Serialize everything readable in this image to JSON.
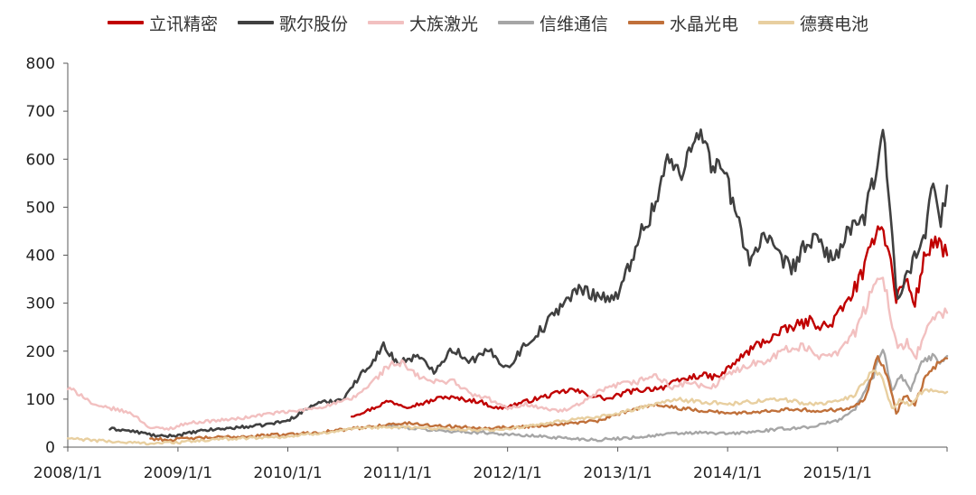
{
  "chart_data": {
    "type": "line",
    "title": "",
    "xlabel": "",
    "ylabel": "",
    "ylim": [
      0,
      800
    ],
    "y_ticks": [
      0,
      100,
      200,
      300,
      400,
      500,
      600,
      700,
      800
    ],
    "x_ticks": [
      "2008/1/1",
      "2009/1/1",
      "2010/1/1",
      "2011/1/1",
      "2012/1/1",
      "2013/1/1",
      "2014/1/1",
      "2015/1/1"
    ],
    "x_range": [
      "2008-01-01",
      "2015-12-31"
    ],
    "grid": false,
    "legend_position": "top",
    "series": [
      {
        "name": "立讯精密",
        "color": "#c00000",
        "points": [
          [
            "2010-08-01",
            65
          ],
          [
            "2010-10-01",
            78
          ],
          [
            "2010-12-01",
            96
          ],
          [
            "2011-02-01",
            85
          ],
          [
            "2011-04-01",
            92
          ],
          [
            "2011-06-01",
            105
          ],
          [
            "2011-08-01",
            100
          ],
          [
            "2011-10-01",
            95
          ],
          [
            "2011-12-01",
            80
          ],
          [
            "2012-02-01",
            90
          ],
          [
            "2012-04-01",
            100
          ],
          [
            "2012-06-01",
            110
          ],
          [
            "2012-08-01",
            120
          ],
          [
            "2012-10-01",
            108
          ],
          [
            "2012-12-01",
            100
          ],
          [
            "2013-02-01",
            115
          ],
          [
            "2013-04-01",
            120
          ],
          [
            "2013-06-01",
            125
          ],
          [
            "2013-08-01",
            140
          ],
          [
            "2013-10-01",
            150
          ],
          [
            "2013-12-01",
            145
          ],
          [
            "2014-02-01",
            180
          ],
          [
            "2014-04-01",
            210
          ],
          [
            "2014-06-01",
            230
          ],
          [
            "2014-08-01",
            250
          ],
          [
            "2014-10-01",
            262
          ],
          [
            "2014-12-01",
            250
          ],
          [
            "2015-02-01",
            300
          ],
          [
            "2015-04-01",
            370
          ],
          [
            "2015-05-15",
            470
          ],
          [
            "2015-06-15",
            430
          ],
          [
            "2015-07-15",
            310
          ],
          [
            "2015-08-15",
            350
          ],
          [
            "2015-09-15",
            300
          ],
          [
            "2015-10-15",
            390
          ],
          [
            "2015-11-15",
            430
          ],
          [
            "2015-12-31",
            400
          ]
        ]
      },
      {
        "name": "歌尔股份",
        "color": "#404040",
        "points": [
          [
            "2008-05-20",
            38
          ],
          [
            "2008-07-01",
            36
          ],
          [
            "2008-09-01",
            30
          ],
          [
            "2008-11-01",
            22
          ],
          [
            "2009-01-01",
            25
          ],
          [
            "2009-04-01",
            35
          ],
          [
            "2009-07-01",
            40
          ],
          [
            "2009-10-01",
            45
          ],
          [
            "2010-01-01",
            55
          ],
          [
            "2010-04-01",
            90
          ],
          [
            "2010-07-01",
            100
          ],
          [
            "2010-09-01",
            150
          ],
          [
            "2010-11-15",
            210
          ],
          [
            "2011-01-01",
            175
          ],
          [
            "2011-03-01",
            190
          ],
          [
            "2011-05-01",
            160
          ],
          [
            "2011-07-01",
            205
          ],
          [
            "2011-09-01",
            180
          ],
          [
            "2011-11-01",
            200
          ],
          [
            "2012-01-01",
            165
          ],
          [
            "2012-03-01",
            215
          ],
          [
            "2012-05-01",
            250
          ],
          [
            "2012-07-01",
            300
          ],
          [
            "2012-09-01",
            330
          ],
          [
            "2012-11-01",
            315
          ],
          [
            "2013-01-01",
            310
          ],
          [
            "2013-03-01",
            420
          ],
          [
            "2013-05-01",
            500
          ],
          [
            "2013-06-15",
            600
          ],
          [
            "2013-08-01",
            560
          ],
          [
            "2013-09-20",
            675
          ],
          [
            "2013-11-01",
            600
          ],
          [
            "2013-12-15",
            580
          ],
          [
            "2014-02-01",
            480
          ],
          [
            "2014-03-15",
            390
          ],
          [
            "2014-05-01",
            440
          ],
          [
            "2014-06-15",
            400
          ],
          [
            "2014-08-01",
            370
          ],
          [
            "2014-09-15",
            420
          ],
          [
            "2014-11-01",
            430
          ],
          [
            "2014-12-15",
            390
          ],
          [
            "2015-02-01",
            440
          ],
          [
            "2015-04-01",
            480
          ],
          [
            "2015-05-01",
            550
          ],
          [
            "2015-06-01",
            680
          ],
          [
            "2015-06-20",
            520
          ],
          [
            "2015-07-20",
            300
          ],
          [
            "2015-08-20",
            360
          ],
          [
            "2015-09-20",
            410
          ],
          [
            "2015-10-20",
            440
          ],
          [
            "2015-11-15",
            550
          ],
          [
            "2015-12-10",
            480
          ],
          [
            "2015-12-31",
            545
          ]
        ]
      },
      {
        "name": "大族激光",
        "color": "#f2c0c0",
        "points": [
          [
            "2008-01-01",
            122
          ],
          [
            "2008-02-15",
            110
          ],
          [
            "2008-04-01",
            85
          ],
          [
            "2008-06-01",
            80
          ],
          [
            "2008-08-01",
            70
          ],
          [
            "2008-10-01",
            40
          ],
          [
            "2008-12-01",
            38
          ],
          [
            "2009-02-01",
            50
          ],
          [
            "2009-05-01",
            55
          ],
          [
            "2009-08-01",
            60
          ],
          [
            "2009-11-01",
            70
          ],
          [
            "2010-02-01",
            75
          ],
          [
            "2010-05-01",
            85
          ],
          [
            "2010-08-01",
            100
          ],
          [
            "2010-10-01",
            130
          ],
          [
            "2010-12-01",
            170
          ],
          [
            "2011-01-15",
            175
          ],
          [
            "2011-03-01",
            150
          ],
          [
            "2011-05-01",
            135
          ],
          [
            "2011-07-01",
            140
          ],
          [
            "2011-09-01",
            110
          ],
          [
            "2011-11-01",
            100
          ],
          [
            "2012-01-01",
            80
          ],
          [
            "2012-03-01",
            90
          ],
          [
            "2012-05-01",
            80
          ],
          [
            "2012-07-01",
            75
          ],
          [
            "2012-09-01",
            90
          ],
          [
            "2012-11-01",
            115
          ],
          [
            "2013-01-01",
            130
          ],
          [
            "2013-03-01",
            135
          ],
          [
            "2013-05-01",
            150
          ],
          [
            "2013-07-01",
            125
          ],
          [
            "2013-09-01",
            135
          ],
          [
            "2013-11-01",
            120
          ],
          [
            "2014-01-01",
            150
          ],
          [
            "2014-03-01",
            170
          ],
          [
            "2014-05-01",
            180
          ],
          [
            "2014-07-01",
            200
          ],
          [
            "2014-09-01",
            210
          ],
          [
            "2014-11-01",
            190
          ],
          [
            "2015-01-01",
            200
          ],
          [
            "2015-03-01",
            240
          ],
          [
            "2015-05-01",
            330
          ],
          [
            "2015-06-01",
            360
          ],
          [
            "2015-06-20",
            300
          ],
          [
            "2015-07-20",
            200
          ],
          [
            "2015-08-20",
            220
          ],
          [
            "2015-09-20",
            190
          ],
          [
            "2015-10-20",
            240
          ],
          [
            "2015-11-20",
            270
          ],
          [
            "2015-12-31",
            280
          ]
        ]
      },
      {
        "name": "信维通信",
        "color": "#a6a6a6",
        "points": [
          [
            "2010-12-01",
            45
          ],
          [
            "2011-02-01",
            40
          ],
          [
            "2011-05-01",
            35
          ],
          [
            "2011-08-01",
            32
          ],
          [
            "2011-11-01",
            30
          ],
          [
            "2012-02-01",
            25
          ],
          [
            "2012-05-01",
            22
          ],
          [
            "2012-08-01",
            18
          ],
          [
            "2012-11-01",
            15
          ],
          [
            "2013-01-01",
            18
          ],
          [
            "2013-04-01",
            22
          ],
          [
            "2013-07-01",
            28
          ],
          [
            "2013-10-01",
            30
          ],
          [
            "2014-01-01",
            28
          ],
          [
            "2014-04-01",
            32
          ],
          [
            "2014-07-01",
            38
          ],
          [
            "2014-10-01",
            42
          ],
          [
            "2015-01-01",
            55
          ],
          [
            "2015-03-01",
            80
          ],
          [
            "2015-05-01",
            150
          ],
          [
            "2015-06-01",
            210
          ],
          [
            "2015-07-01",
            120
          ],
          [
            "2015-08-01",
            150
          ],
          [
            "2015-09-01",
            120
          ],
          [
            "2015-10-01",
            170
          ],
          [
            "2015-11-01",
            190
          ],
          [
            "2015-12-01",
            180
          ],
          [
            "2015-12-31",
            190
          ]
        ]
      },
      {
        "name": "水晶光电",
        "color": "#c0703a",
        "points": [
          [
            "2008-10-01",
            18
          ],
          [
            "2008-12-01",
            15
          ],
          [
            "2009-02-01",
            18
          ],
          [
            "2009-05-01",
            20
          ],
          [
            "2009-08-01",
            22
          ],
          [
            "2009-11-01",
            25
          ],
          [
            "2010-02-01",
            28
          ],
          [
            "2010-05-01",
            32
          ],
          [
            "2010-08-01",
            38
          ],
          [
            "2010-11-01",
            45
          ],
          [
            "2011-02-01",
            50
          ],
          [
            "2011-05-01",
            45
          ],
          [
            "2011-08-01",
            42
          ],
          [
            "2011-11-01",
            40
          ],
          [
            "2012-02-01",
            42
          ],
          [
            "2012-05-01",
            45
          ],
          [
            "2012-08-01",
            50
          ],
          [
            "2012-11-01",
            55
          ],
          [
            "2013-02-01",
            75
          ],
          [
            "2013-05-01",
            90
          ],
          [
            "2013-08-01",
            80
          ],
          [
            "2013-11-01",
            75
          ],
          [
            "2014-02-01",
            70
          ],
          [
            "2014-05-01",
            75
          ],
          [
            "2014-08-01",
            80
          ],
          [
            "2014-11-01",
            75
          ],
          [
            "2015-02-01",
            80
          ],
          [
            "2015-04-01",
            100
          ],
          [
            "2015-05-15",
            190
          ],
          [
            "2015-06-15",
            150
          ],
          [
            "2015-07-15",
            70
          ],
          [
            "2015-08-15",
            110
          ],
          [
            "2015-09-15",
            90
          ],
          [
            "2015-10-15",
            140
          ],
          [
            "2015-11-15",
            165
          ],
          [
            "2015-12-31",
            185
          ]
        ]
      },
      {
        "name": "德赛电池",
        "color": "#e8cfa0",
        "points": [
          [
            "2008-01-01",
            18
          ],
          [
            "2008-04-01",
            14
          ],
          [
            "2008-07-01",
            10
          ],
          [
            "2008-10-01",
            8
          ],
          [
            "2009-01-01",
            10
          ],
          [
            "2009-04-01",
            14
          ],
          [
            "2009-07-01",
            18
          ],
          [
            "2009-10-01",
            20
          ],
          [
            "2010-01-01",
            22
          ],
          [
            "2010-04-01",
            28
          ],
          [
            "2010-07-01",
            35
          ],
          [
            "2010-10-01",
            40
          ],
          [
            "2011-01-01",
            42
          ],
          [
            "2011-04-01",
            40
          ],
          [
            "2011-07-01",
            38
          ],
          [
            "2011-10-01",
            35
          ],
          [
            "2012-01-01",
            38
          ],
          [
            "2012-04-01",
            45
          ],
          [
            "2012-07-01",
            55
          ],
          [
            "2012-10-01",
            60
          ],
          [
            "2013-01-01",
            70
          ],
          [
            "2013-04-01",
            85
          ],
          [
            "2013-07-01",
            100
          ],
          [
            "2013-10-01",
            95
          ],
          [
            "2014-01-01",
            90
          ],
          [
            "2014-04-01",
            95
          ],
          [
            "2014-07-01",
            100
          ],
          [
            "2014-10-01",
            90
          ],
          [
            "2015-01-01",
            95
          ],
          [
            "2015-03-01",
            110
          ],
          [
            "2015-05-01",
            160
          ],
          [
            "2015-06-01",
            140
          ],
          [
            "2015-07-01",
            80
          ],
          [
            "2015-08-01",
            100
          ],
          [
            "2015-09-01",
            85
          ],
          [
            "2015-10-01",
            110
          ],
          [
            "2015-11-01",
            120
          ],
          [
            "2015-12-31",
            115
          ]
        ]
      }
    ]
  }
}
